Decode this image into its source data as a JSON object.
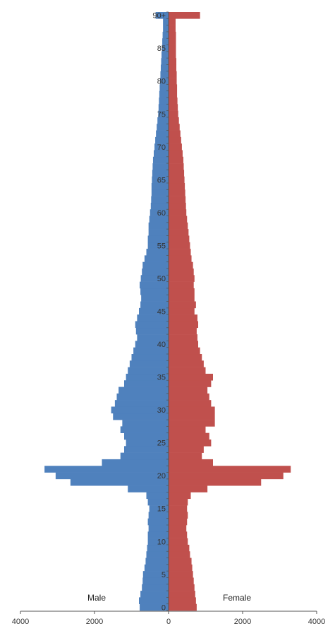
{
  "chart_data": {
    "type": "bar",
    "orientation": "horizontal-population-pyramid",
    "ages": [
      "0",
      "1",
      "2",
      "3",
      "4",
      "5",
      "6",
      "7",
      "8",
      "9",
      "10",
      "11",
      "12",
      "13",
      "14",
      "15",
      "16",
      "17",
      "18",
      "19",
      "20",
      "21",
      "22",
      "23",
      "24",
      "25",
      "26",
      "27",
      "28",
      "29",
      "30",
      "31",
      "32",
      "33",
      "34",
      "35",
      "36",
      "37",
      "38",
      "39",
      "40",
      "41",
      "42",
      "43",
      "44",
      "45",
      "46",
      "47",
      "48",
      "49",
      "50",
      "51",
      "52",
      "53",
      "54",
      "55",
      "56",
      "57",
      "58",
      "59",
      "60",
      "61",
      "62",
      "63",
      "64",
      "65",
      "66",
      "67",
      "68",
      "69",
      "70",
      "71",
      "72",
      "73",
      "74",
      "75",
      "76",
      "77",
      "78",
      "79",
      "80",
      "81",
      "82",
      "83",
      "84",
      "85",
      "86",
      "87",
      "88",
      "89",
      "90+"
    ],
    "series": [
      {
        "name": "Male",
        "color": "#4f81bd",
        "values": [
          780,
          800,
          760,
          720,
          700,
          690,
          650,
          620,
          600,
          580,
          560,
          560,
          540,
          560,
          540,
          520,
          560,
          600,
          1100,
          2650,
          3050,
          3350,
          1800,
          1300,
          1200,
          1150,
          1200,
          1300,
          1250,
          1500,
          1550,
          1450,
          1400,
          1350,
          1200,
          1150,
          1100,
          1050,
          1000,
          950,
          900,
          850,
          880,
          900,
          850,
          800,
          760,
          740,
          760,
          780,
          750,
          720,
          700,
          650,
          600,
          560,
          560,
          540,
          540,
          520,
          500,
          480,
          470,
          460,
          460,
          450,
          440,
          430,
          420,
          400,
          380,
          360,
          340,
          320,
          300,
          280,
          270,
          260,
          250,
          240,
          230,
          220,
          210,
          200,
          190,
          180,
          170,
          160,
          150,
          150,
          350
        ]
      },
      {
        "name": "Female",
        "color": "#c0504d",
        "values": [
          760,
          740,
          720,
          700,
          680,
          660,
          640,
          620,
          580,
          560,
          520,
          500,
          480,
          500,
          520,
          500,
          520,
          600,
          1050,
          2500,
          3100,
          3300,
          1200,
          900,
          950,
          1150,
          1100,
          1000,
          1250,
          1250,
          1250,
          1150,
          1100,
          1050,
          1150,
          1200,
          1000,
          950,
          900,
          850,
          800,
          780,
          760,
          800,
          780,
          700,
          740,
          700,
          700,
          680,
          700,
          680,
          660,
          620,
          600,
          580,
          560,
          540,
          520,
          500,
          480,
          470,
          460,
          450,
          440,
          430,
          420,
          410,
          400,
          380,
          360,
          340,
          320,
          300,
          280,
          260,
          250,
          240,
          230,
          230,
          220,
          220,
          210,
          210,
          200,
          200,
          200,
          200,
          190,
          190,
          850
        ]
      }
    ],
    "x_ticks": [
      "4000",
      "2000",
      "0",
      "2000",
      "4000"
    ],
    "y_tick_labels": [
      "0",
      "5",
      "10",
      "15",
      "20",
      "25",
      "30",
      "35",
      "40",
      "45",
      "50",
      "55",
      "60",
      "65",
      "70",
      "75",
      "80",
      "85",
      "90+"
    ],
    "xlim": [
      -4000,
      4000
    ],
    "legend": [
      "Male",
      "Female"
    ],
    "legend_placement": "bottom-inside",
    "grid": false,
    "title": "",
    "xlabel": "",
    "ylabel": ""
  }
}
